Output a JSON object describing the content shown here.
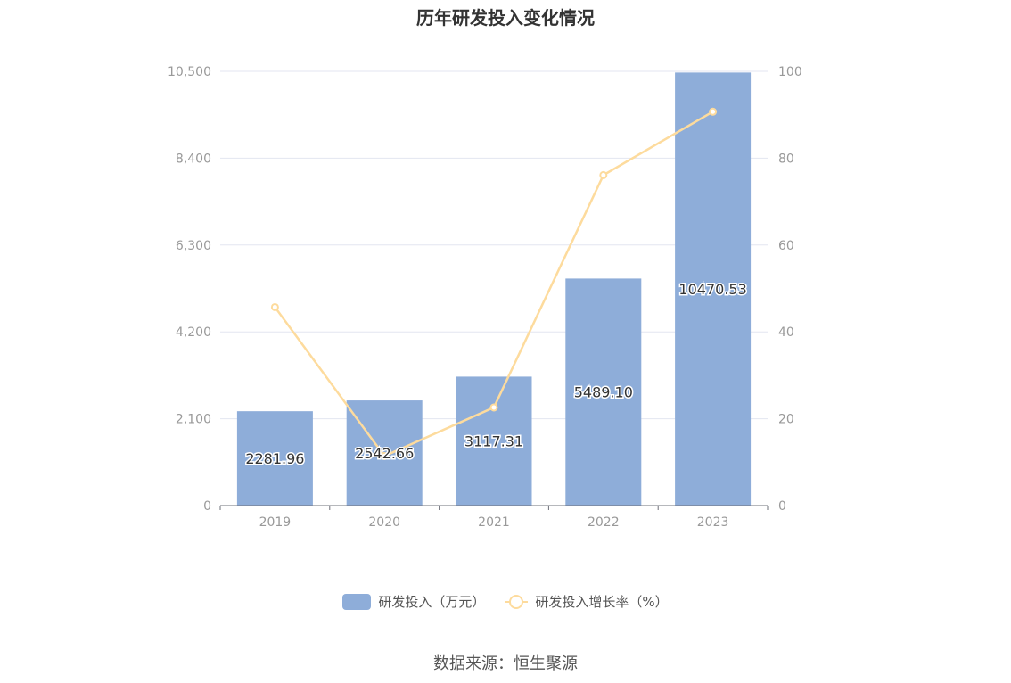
{
  "title": "历年研发投入变化情况",
  "source": "数据来源：恒生聚源",
  "colors": {
    "bar": "#8eadd9",
    "line": "#fddb9d",
    "grid": "#e3e6f0",
    "axis": "#999999"
  },
  "chart_data": {
    "type": "bar",
    "title": "历年研发投入变化情况",
    "categories": [
      "2019",
      "2020",
      "2021",
      "2022",
      "2023"
    ],
    "series": [
      {
        "name": "研发投入（万元）",
        "type": "bar",
        "axis": "left",
        "values": [
          2281.96,
          2542.66,
          3117.31,
          5489.1,
          10470.53
        ],
        "labels": [
          "2281.96",
          "2542.66",
          "3117.31",
          "5489.10",
          "10470.53"
        ]
      },
      {
        "name": "研发投入增长率（%）",
        "type": "line",
        "axis": "right",
        "values": [
          45.7,
          11.4,
          22.6,
          76.1,
          90.7
        ]
      }
    ],
    "y_left": {
      "lim": [
        0,
        10500
      ],
      "ticks": [
        "0",
        "2,100",
        "4,200",
        "6,300",
        "8,400",
        "10,500"
      ]
    },
    "y_right": {
      "lim": [
        0,
        100
      ],
      "ticks": [
        "0",
        "20",
        "40",
        "60",
        "80",
        "100"
      ]
    },
    "grid": true,
    "legend": "bottom"
  }
}
